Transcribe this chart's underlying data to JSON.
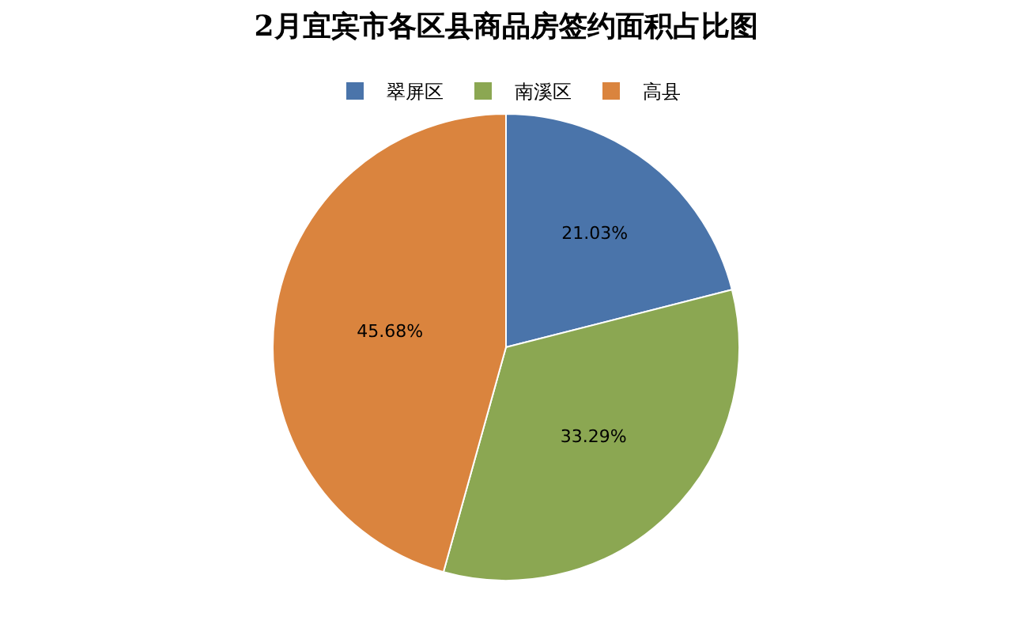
{
  "chart_data": {
    "type": "pie",
    "title": "2月宜宾市各区县商品房签约面积占比图",
    "categories": [
      "翠屏区",
      "南溪区",
      "高县"
    ],
    "values": [
      21.03,
      33.29,
      45.68
    ],
    "value_labels": [
      "21.03%",
      "33.29%",
      "45.68%"
    ],
    "colors": [
      "#4a74aa",
      "#8ba752",
      "#da843e"
    ],
    "legend": "top"
  }
}
